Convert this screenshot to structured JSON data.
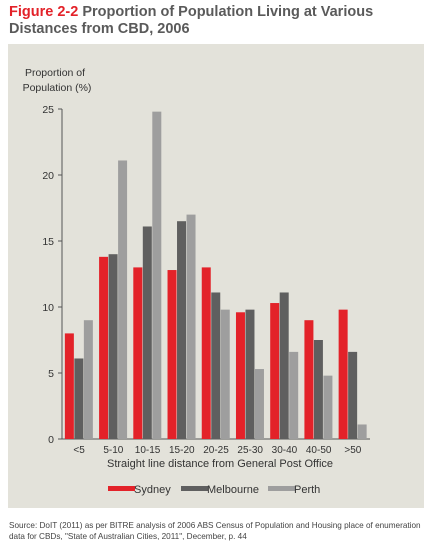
{
  "figure": {
    "label": "Figure 2-2",
    "title": "Proportion of Population Living at Various Distances from CBD, 2006"
  },
  "source": "Source: DoIT (2011) as per BITRE analysis of 2006 ABS Census of Population and Housing place of enumeration data for CBDs, \"State of Australian Cities, 2011\", December, p. 44",
  "colors": {
    "Sydney": "#e32229",
    "Melbourne": "#5f5f5f",
    "Perth": "#9e9e9e"
  },
  "chart_data": {
    "type": "bar",
    "ylabel_line1": "Proportion of",
    "ylabel_line2": "Population (%)",
    "xlabel": "Straight line distance from General Post Office",
    "ylim": [
      0,
      25
    ],
    "yticks": [
      "0",
      "5",
      "10",
      "15",
      "20",
      "25"
    ],
    "categories": [
      "<5",
      "5-10",
      "10-15",
      "15-20",
      "20-25",
      "25-30",
      "30-40",
      "40-50",
      ">50"
    ],
    "series": [
      {
        "name": "Sydney",
        "values": [
          8.0,
          13.8,
          13.0,
          12.8,
          13.0,
          9.6,
          10.3,
          9.0,
          9.8
        ]
      },
      {
        "name": "Melbourne",
        "values": [
          6.1,
          14.0,
          16.1,
          16.5,
          11.1,
          9.8,
          11.1,
          7.5,
          6.6
        ]
      },
      {
        "name": "Perth",
        "values": [
          9.0,
          21.1,
          24.8,
          17.0,
          9.8,
          5.3,
          6.6,
          4.8,
          1.1
        ]
      }
    ],
    "legend_position": "bottom",
    "grid": false
  }
}
